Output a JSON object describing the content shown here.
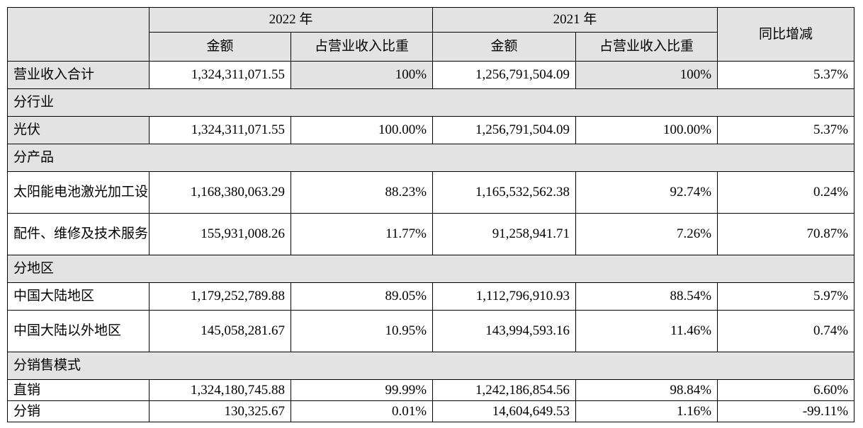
{
  "header": {
    "year_2022": "2022 年",
    "year_2021": "2021 年",
    "yoy": "同比增减",
    "amount_2022": "金额",
    "ratio_2022": "占营业收入比重",
    "amount_2021": "金额",
    "ratio_2021": "占营业收入比重"
  },
  "total": {
    "label": "营业收入合计",
    "amount_2022": "1,324,311,071.55",
    "ratio_2022": "100%",
    "amount_2021": "1,256,791,504.09",
    "ratio_2021": "100%",
    "yoy": "5.37%"
  },
  "sections": [
    {
      "title": "分行业",
      "rows": [
        {
          "label": "光伏",
          "amount_2022": "1,324,311,071.55",
          "ratio_2022": "100.00%",
          "amount_2021": "1,256,791,504.09",
          "ratio_2021": "100.00%",
          "yoy": "5.37%"
        }
      ]
    },
    {
      "title": "分产品",
      "rows": [
        {
          "label": "太阳能电池激光加工设备",
          "amount_2022": "1,168,380,063.29",
          "ratio_2022": "88.23%",
          "amount_2021": "1,165,532,562.38",
          "ratio_2021": "92.74%",
          "yoy": "0.24%"
        },
        {
          "label": "配件、维修及技术服务费",
          "amount_2022": "155,931,008.26",
          "ratio_2022": "11.77%",
          "amount_2021": "91,258,941.71",
          "ratio_2021": "7.26%",
          "yoy": "70.87%"
        }
      ]
    },
    {
      "title": "分地区",
      "rows": [
        {
          "label": "中国大陆地区",
          "amount_2022": "1,179,252,789.88",
          "ratio_2022": "89.05%",
          "amount_2021": "1,112,796,910.93",
          "ratio_2021": "88.54%",
          "yoy": "5.97%"
        },
        {
          "label": "中国大陆以外地区",
          "amount_2022": "145,058,281.67",
          "ratio_2022": "10.95%",
          "amount_2021": "143,994,593.16",
          "ratio_2021": "11.46%",
          "yoy": "0.74%"
        }
      ]
    },
    {
      "title": "分销售模式",
      "rows": [
        {
          "label": "直销",
          "amount_2022": "1,324,180,745.88",
          "ratio_2022": "99.99%",
          "amount_2021": "1,242,186,854.56",
          "ratio_2021": "98.84%",
          "yoy": "6.60%"
        },
        {
          "label": "分销",
          "amount_2022": "130,325.67",
          "ratio_2022": "0.01%",
          "amount_2021": "14,604,649.53",
          "ratio_2021": "1.16%",
          "yoy": "-99.11%"
        }
      ]
    }
  ]
}
